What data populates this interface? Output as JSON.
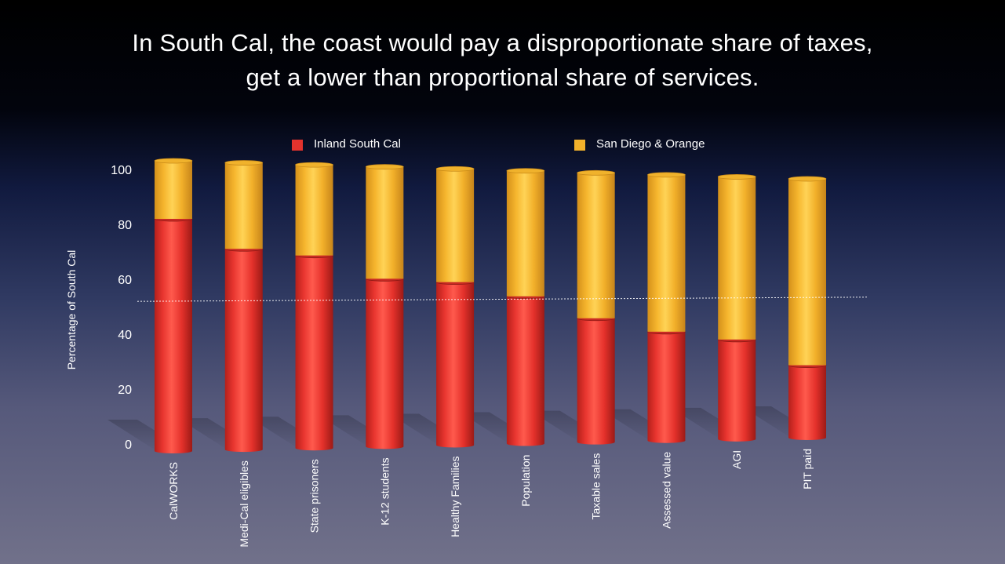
{
  "slide": {
    "title_line1": "In South Cal, the coast would pay a disproportionate share of taxes,",
    "title_line2": "get a lower than proportional share of services."
  },
  "colors": {
    "inland": "#e3332d",
    "coast": "#f2b12b",
    "reference_line": "#ffffff"
  },
  "chart_data": {
    "type": "bar",
    "stacked": true,
    "title": "In South Cal, the coast would pay a disproportionate share of taxes, get a lower than proportional share of services.",
    "xlabel": "",
    "ylabel": "Percentage of South Cal",
    "ylim": [
      0,
      100
    ],
    "yticks": [
      "0",
      "20",
      "40",
      "60",
      "80",
      "100"
    ],
    "categories": [
      "CalWORKS",
      "Medi-Cal eligibles",
      "State prisoners",
      "K-12 students",
      "Healthy Families",
      "Population",
      "Taxable sales",
      "Assessed value",
      "AGI",
      "PIT paid"
    ],
    "series": [
      {
        "name": "Inland South Cal",
        "values": [
          80,
          70,
          68,
          60,
          59,
          54,
          46,
          41,
          38,
          28
        ]
      },
      {
        "name": "San Diego & Orange",
        "values": [
          20,
          30,
          32,
          40,
          41,
          46,
          54,
          59,
          62,
          72
        ]
      }
    ],
    "reference_line": {
      "value": 54,
      "style": "dotted",
      "label": ""
    },
    "legend_position": "top"
  }
}
